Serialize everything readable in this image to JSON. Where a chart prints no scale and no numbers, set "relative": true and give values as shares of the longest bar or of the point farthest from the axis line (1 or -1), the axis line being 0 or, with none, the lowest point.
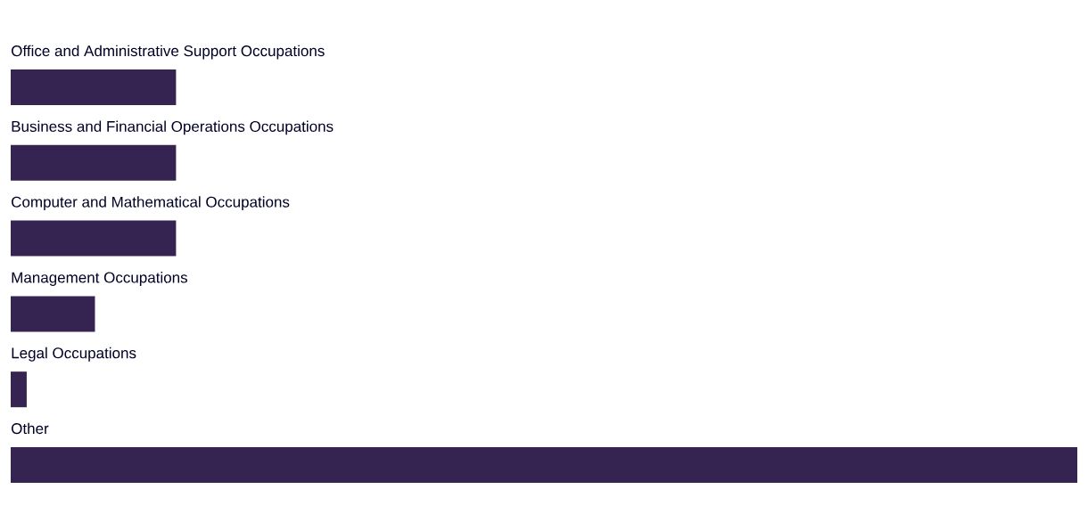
{
  "chart_data": {
    "type": "bar",
    "orientation": "horizontal",
    "relative": true,
    "color": "#352452",
    "categories": [
      "Office and Administrative Support Occupations",
      "Business and Financial Operations Occupations",
      "Computer and Mathematical Occupations",
      "Management Occupations",
      "Legal Occupations",
      "Other"
    ],
    "values": [
      0.155,
      0.155,
      0.155,
      0.079,
      0.015,
      1
    ]
  }
}
